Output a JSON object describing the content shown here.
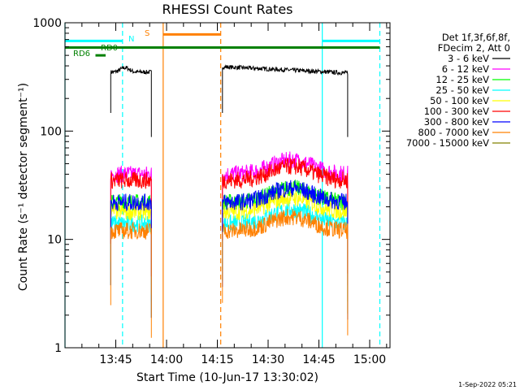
{
  "chart_data": {
    "type": "line",
    "title": "RHESSI Count Rates",
    "xlabel": "Start Time (10-Jun-17 13:30:02)",
    "ylabel": "Count Rate (s⁻¹ detector segment⁻¹)",
    "y_scale": "log",
    "ylim": [
      1,
      1000
    ],
    "xlim_minutes": [
      0,
      96
    ],
    "x_ticks": [
      {
        "label": "13:45",
        "min": 15
      },
      {
        "label": "14:00",
        "min": 30
      },
      {
        "label": "14:15",
        "min": 45
      },
      {
        "label": "14:30",
        "min": 60
      },
      {
        "label": "14:45",
        "min": 75
      },
      {
        "label": "15:00",
        "min": 90
      }
    ],
    "y_ticks": [
      {
        "label": "1",
        "value": 1
      },
      {
        "label": "10",
        "value": 10
      },
      {
        "label": "100",
        "value": 100
      },
      {
        "label": "1000",
        "value": 1000
      }
    ],
    "legend_header": [
      "Det 1f,3f,6f,8f,",
      "FDecim 2, Att 0"
    ],
    "legend_position": "right",
    "series": [
      {
        "name": "3 - 6 keV",
        "color": "#000000",
        "level": 350
      },
      {
        "name": "6 - 12 keV",
        "color": "#ff00ff",
        "level": 40
      },
      {
        "name": "12 - 25 keV",
        "color": "#00ff00",
        "level": 22
      },
      {
        "name": "25 - 50 keV",
        "color": "#00ffff",
        "level": 14
      },
      {
        "name": "50 - 100 keV",
        "color": "#ffff00",
        "level": 18
      },
      {
        "name": "100 - 300 keV",
        "color": "#ff0000",
        "level": 35
      },
      {
        "name": "300 - 800 keV",
        "color": "#0000ff",
        "level": 22
      },
      {
        "name": "800 - 7000 keV",
        "color": "#ff8000",
        "level": 12
      },
      {
        "name": "7000 - 15000 keV",
        "color": "#808000",
        "level": 0
      }
    ],
    "data_segments_minutes": [
      [
        13.5,
        25.5
      ],
      [
        46.5,
        83.5
      ]
    ],
    "annotations": [
      {
        "text": "N",
        "color": "#00ffff"
      },
      {
        "text": "S",
        "color": "#ff8000"
      },
      {
        "text": "RD0",
        "color": "#008000"
      },
      {
        "text": "RD6",
        "color": "#008000"
      }
    ],
    "vertical_lines": [
      {
        "min": 0,
        "color": "#00ffff",
        "style": "solid"
      },
      {
        "min": 17,
        "color": "#00ffff",
        "style": "dashed"
      },
      {
        "min": 29,
        "color": "#ff8000",
        "style": "solid"
      },
      {
        "min": 46,
        "color": "#ff8000",
        "style": "dashed"
      },
      {
        "min": 76,
        "color": "#00ffff",
        "style": "solid"
      },
      {
        "min": 93,
        "color": "#00ffff",
        "style": "dashed"
      }
    ],
    "flag_bars": [
      {
        "name": "N",
        "color": "#00ffff",
        "value": 680,
        "ranges": [
          [
            0,
            17
          ],
          [
            76,
            93
          ]
        ]
      },
      {
        "name": "S",
        "color": "#ff8000",
        "value": 780,
        "ranges": [
          [
            29,
            46
          ]
        ]
      },
      {
        "name": "RD0",
        "color": "#008000",
        "value": 590,
        "ranges": [
          [
            0,
            93
          ]
        ]
      },
      {
        "name": "RD6",
        "color": "#008000",
        "value": 500,
        "ranges": [
          [
            9,
            12
          ]
        ]
      }
    ]
  },
  "timestamp": "1-Sep-2022 05:21"
}
